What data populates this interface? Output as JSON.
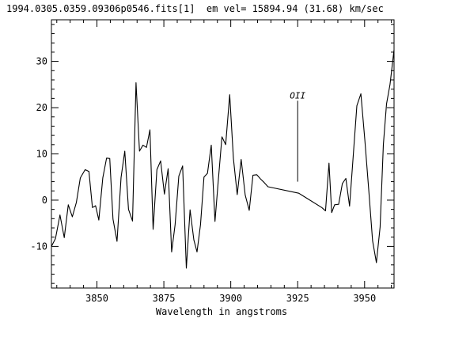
{
  "chart_data": {
    "type": "line",
    "title": "1994.0305.0359.09306p0546.fits[1]  em vel= 15894.94 (31.68) km/sec",
    "xlabel": "Wavelength in angstroms",
    "ylabel": "",
    "xlim": [
      3833,
      3961
    ],
    "ylim": [
      -19,
      39
    ],
    "x_ticks": [
      3850,
      3875,
      3900,
      3925,
      3950
    ],
    "y_ticks": [
      -10,
      0,
      10,
      20,
      30
    ],
    "grid": false,
    "series": [
      {
        "color": "#000000",
        "x": [
          3833,
          3834.5,
          3836.2,
          3837.8,
          3839.3,
          3840.8,
          3842.3,
          3843.8,
          3845.6,
          3847.0,
          3848.3,
          3849.5,
          3850.7,
          3852.2,
          3853.6,
          3854.8,
          3856.0,
          3857.5,
          3859.0,
          3860.4,
          3861.8,
          3863.3,
          3864.6,
          3865.9,
          3867.2,
          3868.5,
          3869.8,
          3871.0,
          3872.4,
          3873.8,
          3875.2,
          3876.6,
          3877.9,
          3879.2,
          3880.6,
          3882.0,
          3883.4,
          3884.8,
          3886.2,
          3887.4,
          3888.7,
          3890.0,
          3891.3,
          3892.7,
          3894.1,
          3895.4,
          3896.7,
          3898.1,
          3899.6,
          3901.0,
          3902.4,
          3903.9,
          3905.4,
          3906.9,
          3908.3,
          3909.7,
          3911.1,
          3912.5,
          3913.9,
          3925.4,
          3934.0,
          3935.4,
          3936.7,
          3937.7,
          3938.8,
          3940.3,
          3941.7,
          3943.0,
          3944.4,
          3945.8,
          3947.1,
          3948.6,
          3950.1,
          3951.5,
          3953.0,
          3954.4,
          3955.8,
          3957.0,
          3958.2,
          3959.5,
          3961.0
        ],
        "y": [
          -10.0,
          -8.3,
          -3.2,
          -8.1,
          -1.0,
          -3.6,
          -0.5,
          4.8,
          6.6,
          6.2,
          -1.6,
          -1.2,
          -4.3,
          4.8,
          9.1,
          9.0,
          -4.1,
          -8.9,
          4.9,
          10.6,
          -2.0,
          -4.5,
          25.4,
          10.6,
          11.9,
          11.4,
          15.2,
          -6.3,
          6.6,
          8.5,
          1.3,
          6.8,
          -11.2,
          -5.3,
          5.2,
          7.4,
          -14.7,
          -2.1,
          -8.6,
          -11.2,
          -5.3,
          5.0,
          5.8,
          11.9,
          -4.6,
          4.7,
          13.7,
          12.0,
          22.8,
          9.0,
          1.2,
          8.8,
          1.1,
          -2.2,
          5.4,
          5.5,
          4.6,
          3.8,
          2.9,
          1.5,
          -1.6,
          -2.3,
          8.0,
          -2.7,
          -1.0,
          -0.9,
          3.6,
          4.7,
          -1.3,
          10.0,
          20.4,
          23.0,
          13.0,
          2.5,
          -8.8,
          -13.5,
          -5.8,
          12.0,
          20.8,
          25.0,
          32.5
        ]
      }
    ],
    "annotations": [
      {
        "text": "OII",
        "x": 3925,
        "y_from": 4.0,
        "y_to": 21.5
      }
    ]
  }
}
